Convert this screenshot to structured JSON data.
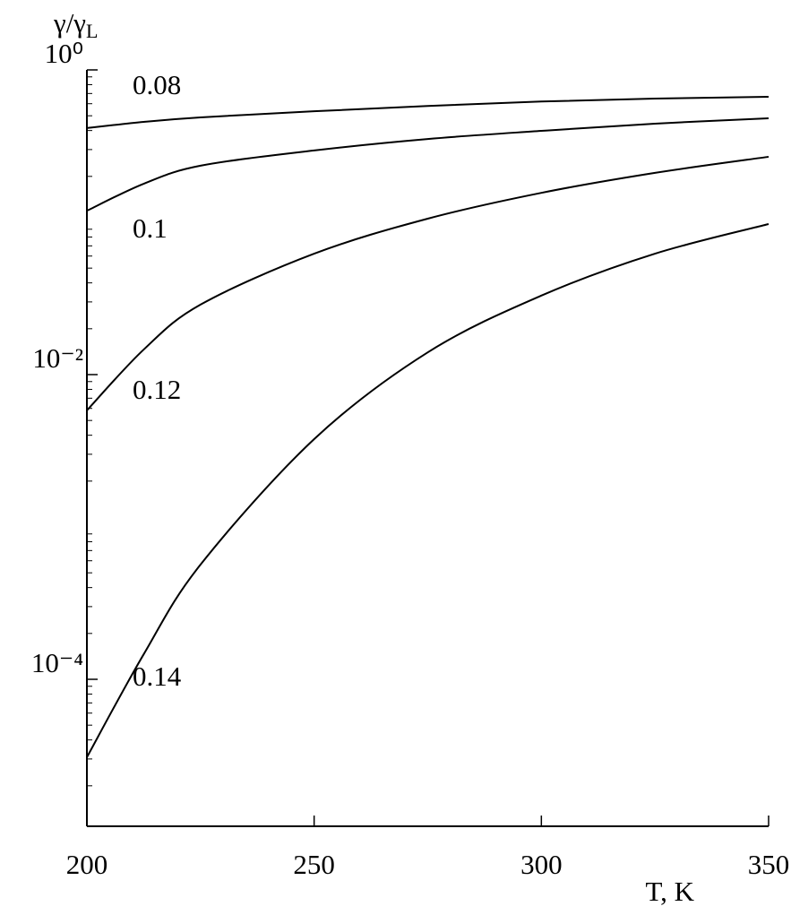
{
  "chart_data": {
    "type": "line",
    "ylabel": "γ/γ",
    "ylabel_sub": "L",
    "xlabel": "T, K",
    "xlim": [
      200,
      350
    ],
    "xticks": [
      200,
      250,
      300,
      350
    ],
    "ylim": [
      1e-05,
      1
    ],
    "log_y": true,
    "yticks": [
      {
        "value": 1,
        "label": "10⁰"
      },
      {
        "value": 0.01,
        "label": "10⁻²"
      },
      {
        "value": 0.0001,
        "label": "10⁻⁴"
      }
    ],
    "x": [
      200,
      212.5,
      225,
      250,
      275,
      300,
      325,
      350
    ],
    "series": [
      {
        "name": "0.08",
        "color": "#000000",
        "values": [
          0.415,
          0.456,
          0.488,
          0.535,
          0.58,
          0.62,
          0.648,
          0.666
        ]
      },
      {
        "name": "0.1",
        "color": "#000000",
        "values": [
          0.119,
          0.179,
          0.235,
          0.296,
          0.352,
          0.398,
          0.444,
          0.481
        ]
      },
      {
        "name": "0.12",
        "color": "#000000",
        "values": [
          0.00582,
          0.0146,
          0.0288,
          0.0622,
          0.1056,
          0.156,
          0.211,
          0.269
        ]
      },
      {
        "name": "0.14",
        "color": "#000000",
        "values": [
          3.08e-05,
          0.000146,
          0.000566,
          0.00377,
          0.014,
          0.033,
          0.0622,
          0.0973
        ]
      }
    ]
  }
}
